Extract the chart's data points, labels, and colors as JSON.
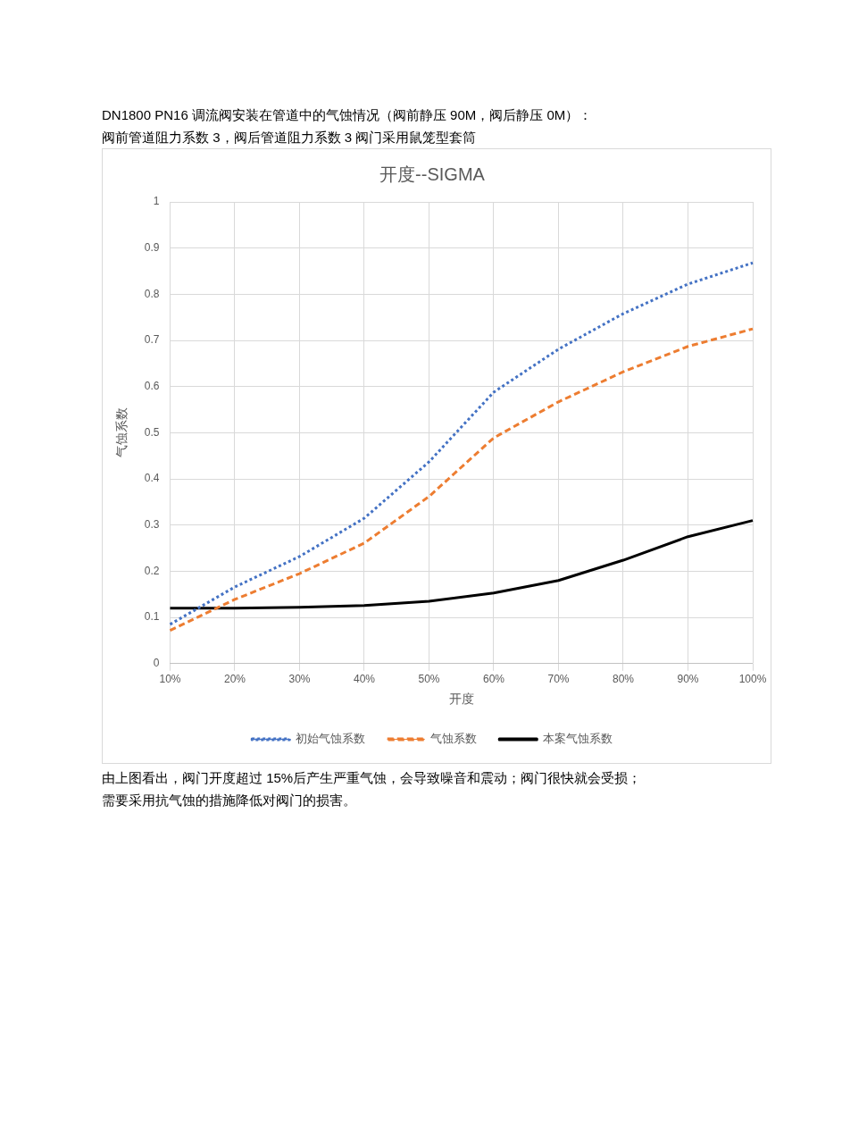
{
  "chart_data": {
    "type": "line",
    "title": "开度--SIGMA",
    "xlabel": "开度",
    "ylabel": "气蚀系数",
    "categories": [
      "10%",
      "20%",
      "30%",
      "40%",
      "50%",
      "60%",
      "70%",
      "80%",
      "90%",
      "100%"
    ],
    "series": [
      {
        "name": "初始气蚀系数",
        "color": "#4472c4",
        "line_style": "dotted",
        "values": [
          0.085,
          0.166,
          0.232,
          0.315,
          0.437,
          0.588,
          0.681,
          0.758,
          0.822,
          0.868
        ]
      },
      {
        "name": "气蚀系数",
        "color": "#ed7d31",
        "line_style": "dashed",
        "values": [
          0.072,
          0.139,
          0.195,
          0.261,
          0.362,
          0.489,
          0.567,
          0.632,
          0.687,
          0.725
        ]
      },
      {
        "name": "本案气蚀系数",
        "color": "#000000",
        "line_style": "solid",
        "values": [
          0.12,
          0.12,
          0.122,
          0.126,
          0.135,
          0.153,
          0.18,
          0.224,
          0.275,
          0.31
        ]
      }
    ],
    "ylim": [
      0,
      1
    ],
    "yticks": [
      0,
      0.1,
      0.2,
      0.3,
      0.4,
      0.5,
      0.6,
      0.7,
      0.8,
      0.9,
      1
    ],
    "grid": true,
    "legend": "bottom",
    "marker": "none",
    "annotations": [
      "DN1800 PN16  调流阀安装在管道中的气蚀情况（阀前静压 90M，阀后静压 0M）：",
      "阀前管道阻力系数 3，阀后管道阻力系数 3    阀门采用鼠笼型套筒",
      "由上图看出，阀门开度超过 15%后产生严重气蚀，会导致噪音和震动；阀门很快就会受损；",
      "需要采用抗气蚀的措施降低对阀门的损害。"
    ]
  }
}
